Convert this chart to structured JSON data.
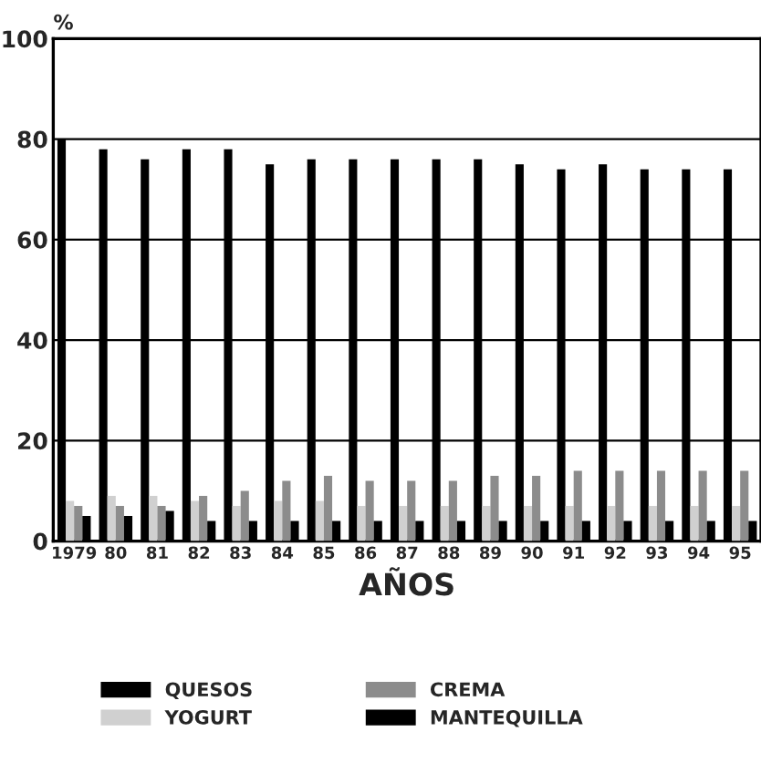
{
  "chart_data": {
    "type": "bar",
    "ylabel": "%",
    "xlabel": "AÑOS",
    "categories": [
      "1979",
      "80",
      "81",
      "82",
      "83",
      "84",
      "85",
      "86",
      "87",
      "88",
      "89",
      "90",
      "91",
      "92",
      "93",
      "94",
      "95"
    ],
    "series": [
      {
        "name": "QUESOS",
        "color": "#000000",
        "values": [
          80,
          78,
          76,
          78,
          78,
          75,
          76,
          76,
          76,
          76,
          76,
          75,
          74,
          75,
          74,
          74,
          74
        ]
      },
      {
        "name": "YOGURT",
        "color": "#d0d0d0",
        "values": [
          8,
          9,
          9,
          8,
          7,
          8,
          8,
          7,
          7,
          7,
          7,
          7,
          7,
          7,
          7,
          7,
          7
        ]
      },
      {
        "name": "CREMA",
        "color": "#8c8c8c",
        "values": [
          7,
          7,
          7,
          9,
          10,
          12,
          13,
          12,
          12,
          12,
          13,
          13,
          14,
          14,
          14,
          14,
          14
        ]
      },
      {
        "name": "MANTEQUILLA",
        "color": "#000000",
        "values": [
          5,
          5,
          6,
          4,
          4,
          4,
          4,
          4,
          4,
          4,
          4,
          4,
          4,
          4,
          4,
          4,
          4
        ]
      }
    ],
    "ylim": [
      0,
      100
    ],
    "yticks": [
      0,
      20,
      40,
      60,
      80,
      100
    ],
    "grid": "y",
    "legend": "bottom"
  }
}
